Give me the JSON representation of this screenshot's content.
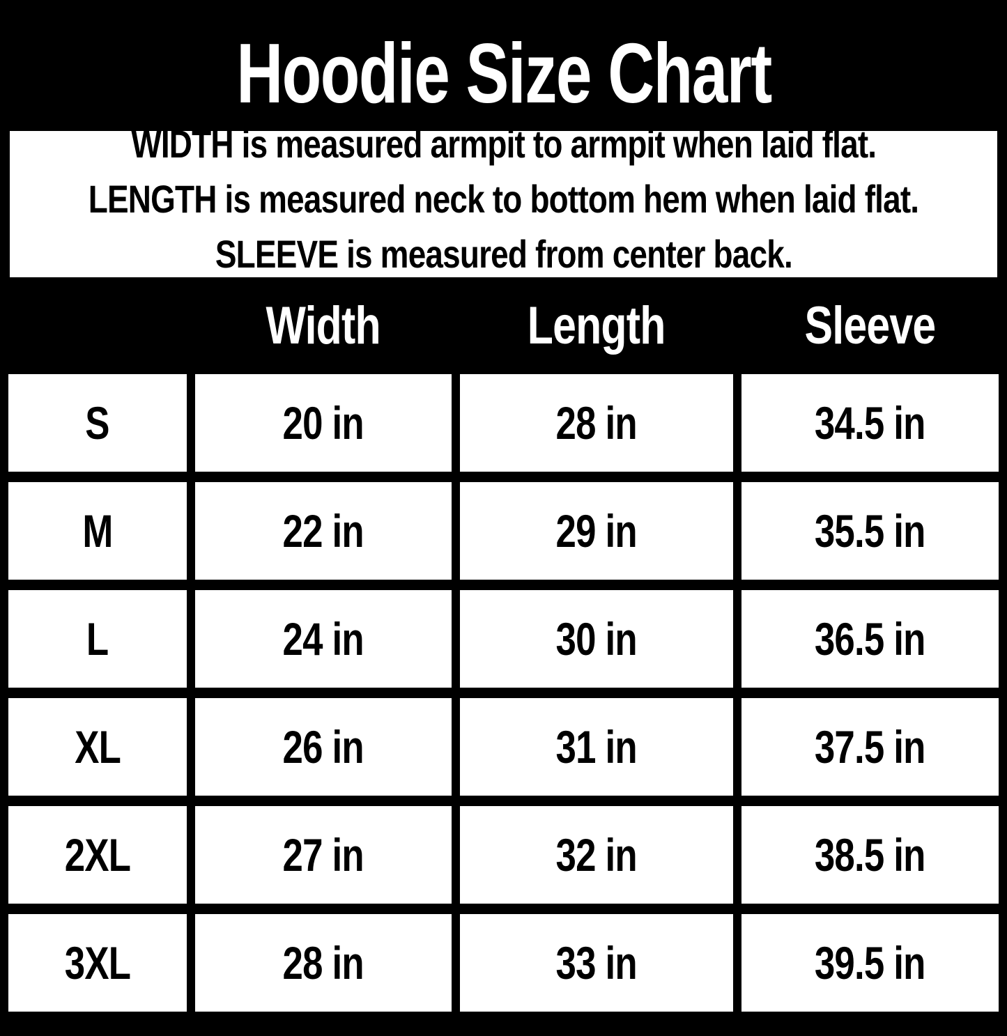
{
  "colors": {
    "background": "#000000",
    "panel": "#ffffff",
    "text_on_dark": "#ffffff",
    "text_on_light": "#000000"
  },
  "title": "Hoodie Size Chart",
  "info_box": {
    "lines": [
      "WIDTH is measured armpit to armpit when laid flat.",
      "LENGTH is measured neck to bottom hem when laid flat.",
      "SLEEVE is measured from center back."
    ]
  },
  "chart_data": {
    "type": "table",
    "title": "Hoodie Size Chart",
    "columns": [
      "Width",
      "Length",
      "Sleeve"
    ],
    "header_labels": {
      "width": "Width",
      "length": "Length",
      "sleeve": "Sleeve"
    },
    "rows": [
      {
        "size": "S",
        "width": "20 in",
        "length": "28 in",
        "sleeve": "34.5 in"
      },
      {
        "size": "M",
        "width": "22 in",
        "length": "29 in",
        "sleeve": "35.5 in"
      },
      {
        "size": "L",
        "width": "24 in",
        "length": "30 in",
        "sleeve": "36.5 in"
      },
      {
        "size": "XL",
        "width": "26 in",
        "length": "31 in",
        "sleeve": "37.5 in"
      },
      {
        "size": "2XL",
        "width": "27 in",
        "length": "32 in",
        "sleeve": "38.5 in"
      },
      {
        "size": "3XL",
        "width": "28 in",
        "length": "33 in",
        "sleeve": "39.5 in"
      }
    ]
  }
}
